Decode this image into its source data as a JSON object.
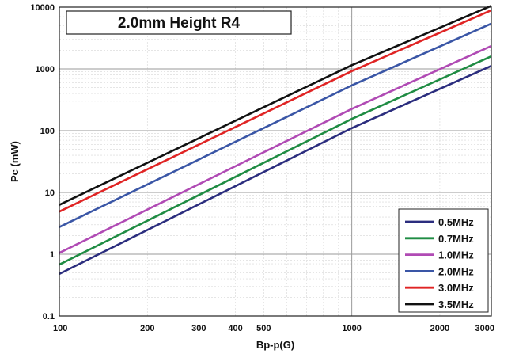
{
  "chart_data": {
    "type": "line",
    "title": "2.0mm Height R4",
    "xlabel": "Bp-p(G)",
    "ylabel": "Pc (mW)",
    "xscale": "log",
    "yscale": "log",
    "xlim": [
      100,
      3000
    ],
    "ylim": [
      0.1,
      10000
    ],
    "xticks": [
      100,
      200,
      300,
      400,
      500,
      1000,
      2000,
      3000
    ],
    "xtick_labels": [
      "100",
      "200",
      "300",
      "400",
      "500",
      "1000",
      "2000",
      "3000"
    ],
    "yticks": [
      0.1,
      1,
      10,
      100,
      1000,
      10000
    ],
    "ytick_labels": [
      "0.1",
      "1",
      "10",
      "100",
      "1000",
      "10000"
    ],
    "grid": true,
    "legend_position": "bottom-right",
    "series": [
      {
        "name": "0.5MHz",
        "color": "#2b2d7e",
        "x": [
          100,
          1000,
          3000
        ],
        "y": [
          0.48,
          110,
          1120
        ]
      },
      {
        "name": "0.7MHz",
        "color": "#1f8c43",
        "x": [
          100,
          1000,
          3000
        ],
        "y": [
          0.68,
          155,
          1600
        ]
      },
      {
        "name": "1.0MHz",
        "color": "#b04ab4",
        "x": [
          100,
          1000,
          3000
        ],
        "y": [
          1.05,
          225,
          2350
        ]
      },
      {
        "name": "2.0MHz",
        "color": "#3a56a6",
        "x": [
          100,
          1000,
          3000
        ],
        "y": [
          2.75,
          540,
          5400
        ]
      },
      {
        "name": "3.0MHz",
        "color": "#e02424",
        "x": [
          100,
          1000,
          3000
        ],
        "y": [
          4.9,
          920,
          8900
        ]
      },
      {
        "name": "3.5MHz",
        "color": "#111111",
        "x": [
          100,
          1000,
          3000
        ],
        "y": [
          6.3,
          1150,
          10500
        ]
      }
    ]
  }
}
